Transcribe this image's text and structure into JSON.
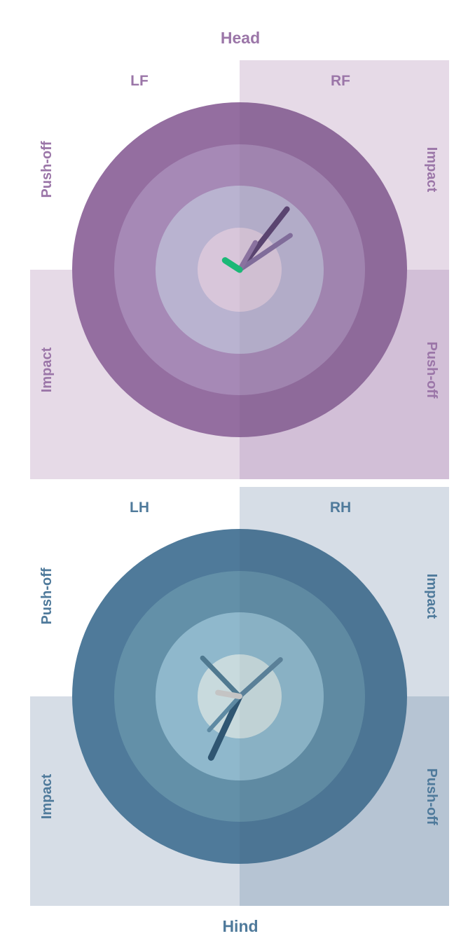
{
  "labels": {
    "head": "Head",
    "hind": "Hind"
  },
  "colors": {
    "front_label": "#9b76a8",
    "front_quad_light": "#e6dae7",
    "front_quad_dark": "#d2bfd7",
    "front_rings": [
      "#946ea0",
      "#a689b6",
      "#b9b3d0",
      "#d8c6da"
    ],
    "hind_label": "#4f7a9b",
    "hind_quad_light": "#d6dde6",
    "hind_quad_dark": "#b6c4d3",
    "hind_rings": [
      "#4f7a9a",
      "#6390a8",
      "#8fb8cc",
      "#c8dadd"
    ]
  },
  "chart_data": [
    {
      "type": "polar",
      "panel": "front",
      "quadrants": {
        "top_left": {
          "label": "LF",
          "side_label": "Push-off"
        },
        "top_right": {
          "label": "RF",
          "side_label": "Impact"
        },
        "bottom_left": {
          "label": "",
          "side_label": "Impact"
        },
        "bottom_right": {
          "label": "",
          "side_label": "Push-off"
        }
      },
      "vectors": [
        {
          "angle_deg": 52,
          "magnitude": 0.49,
          "color": "#5a4470",
          "width": 8
        },
        {
          "angle_deg": 34,
          "magnitude": 0.39,
          "color": "#806c9a",
          "width": 7
        },
        {
          "angle_deg": 60,
          "magnitude": 0.2,
          "color": "#8a729f",
          "width": 7
        },
        {
          "angle_deg": 147,
          "magnitude": 0.11,
          "color": "#1bb877",
          "width": 9
        }
      ]
    },
    {
      "type": "polar",
      "panel": "hind",
      "quadrants": {
        "top_left": {
          "label": "LH",
          "side_label": "Push-off"
        },
        "top_right": {
          "label": "RH",
          "side_label": "Impact"
        },
        "bottom_left": {
          "label": "",
          "side_label": "Impact"
        },
        "bottom_right": {
          "label": "",
          "side_label": "Push-off"
        }
      },
      "vectors": [
        {
          "angle_deg": 245,
          "magnitude": 0.43,
          "color": "#2f5672",
          "width": 9
        },
        {
          "angle_deg": 42,
          "magnitude": 0.35,
          "color": "#5a8098",
          "width": 7
        },
        {
          "angle_deg": 134,
          "magnitude": 0.34,
          "color": "#4f7990",
          "width": 7
        },
        {
          "angle_deg": 228,
          "magnitude": 0.29,
          "color": "#5e8aa3",
          "width": 6
        },
        {
          "angle_deg": 170,
          "magnitude": 0.14,
          "color": "#c4c4c4",
          "width": 8
        }
      ]
    }
  ]
}
